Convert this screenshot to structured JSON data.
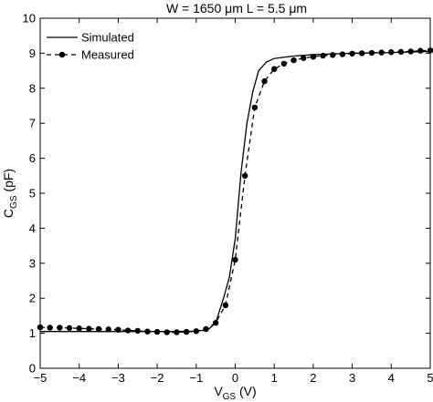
{
  "chart_data": {
    "type": "line",
    "title": "W = 1650 μm  L = 5.5 μm",
    "xlabel": {
      "main": "V",
      "sub": "GS",
      "suffix": " (V)"
    },
    "ylabel": {
      "main": "C",
      "sub": "GS",
      "suffix": " (pF)"
    },
    "xlim": [
      -5,
      5
    ],
    "ylim": [
      0,
      10
    ],
    "xticks": [
      "-5",
      "-4",
      "-3",
      "-2",
      "-1",
      "0",
      "1",
      "2",
      "3",
      "4",
      "5"
    ],
    "yticks": [
      "0",
      "1",
      "2",
      "3",
      "4",
      "5",
      "6",
      "7",
      "8",
      "9",
      "10"
    ],
    "grid": false,
    "legend": {
      "position": "top-left"
    },
    "colors": {
      "axis": "#000000",
      "series": "#000000",
      "background": "#ffffff"
    },
    "series": [
      {
        "name": "Simulated",
        "style": "solid",
        "marker": "none",
        "x": [
          -5,
          -4,
          -3,
          -2,
          -1.5,
          -1,
          -0.7,
          -0.5,
          -0.3,
          -0.15,
          0,
          0.15,
          0.3,
          0.45,
          0.6,
          0.8,
          1.0,
          1.5,
          2,
          3,
          4,
          5
        ],
        "y": [
          1.05,
          1.05,
          1.05,
          1.05,
          1.05,
          1.06,
          1.1,
          1.3,
          2.0,
          2.6,
          3.7,
          5.6,
          7.0,
          7.9,
          8.5,
          8.75,
          8.85,
          8.92,
          8.96,
          9.0,
          9.02,
          9.05
        ]
      },
      {
        "name": "Measured",
        "style": "dashed",
        "marker": "circle",
        "x": [
          -5,
          -4.75,
          -4.5,
          -4.25,
          -4,
          -3.75,
          -3.5,
          -3.25,
          -3,
          -2.75,
          -2.5,
          -2.25,
          -2,
          -1.75,
          -1.5,
          -1.25,
          -1,
          -0.75,
          -0.5,
          -0.25,
          0,
          0.25,
          0.5,
          0.75,
          1,
          1.25,
          1.5,
          1.75,
          2,
          2.25,
          2.5,
          2.75,
          3,
          3.25,
          3.5,
          3.75,
          4,
          4.25,
          4.5,
          4.75,
          5
        ],
        "y": [
          1.17,
          1.16,
          1.16,
          1.15,
          1.14,
          1.13,
          1.12,
          1.11,
          1.1,
          1.08,
          1.07,
          1.05,
          1.04,
          1.03,
          1.03,
          1.04,
          1.06,
          1.12,
          1.3,
          1.8,
          3.1,
          5.5,
          7.45,
          8.2,
          8.55,
          8.7,
          8.8,
          8.86,
          8.9,
          8.93,
          8.95,
          8.97,
          8.99,
          9.0,
          9.01,
          9.02,
          9.03,
          9.04,
          9.05,
          9.07,
          9.08
        ]
      }
    ]
  }
}
